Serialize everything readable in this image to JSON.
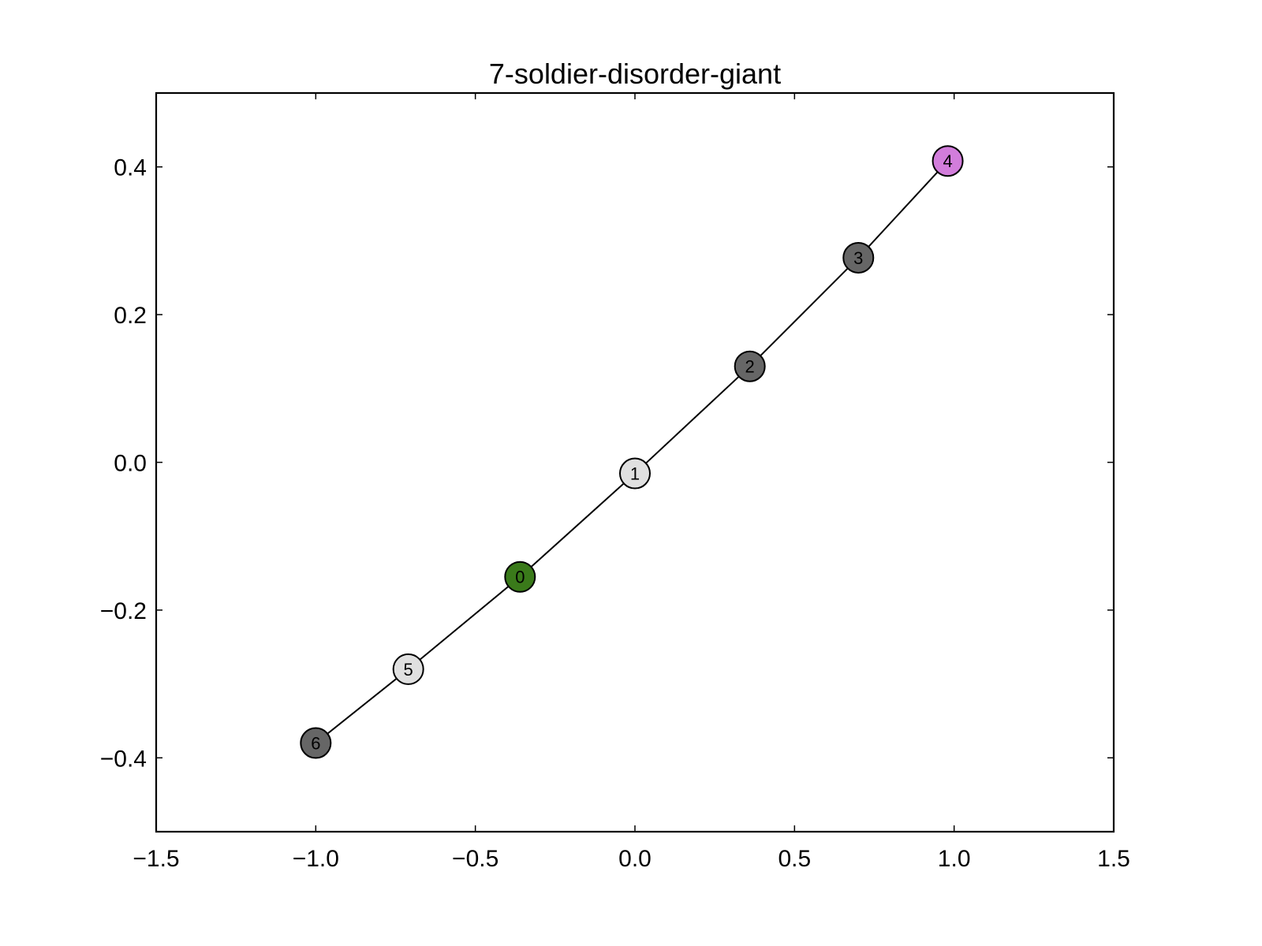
{
  "chart_data": {
    "type": "scatter",
    "title": "7-soldier-disorder-giant",
    "xlabel": "",
    "ylabel": "",
    "xlim": [
      -1.5,
      1.5
    ],
    "ylim": [
      -0.5,
      0.5
    ],
    "x_ticks": [
      "−1.5",
      "−1.0",
      "−0.5",
      "0.0",
      "0.5",
      "1.0",
      "1.5"
    ],
    "x_tick_values": [
      -1.5,
      -1.0,
      -0.5,
      0.0,
      0.5,
      1.0,
      1.5
    ],
    "y_ticks": [
      "−0.4",
      "−0.2",
      "0.0",
      "0.2",
      "0.4"
    ],
    "y_tick_values": [
      -0.4,
      -0.2,
      0.0,
      0.2,
      0.4
    ],
    "grid": false,
    "nodes": [
      {
        "label": "6",
        "x": -1.0,
        "y": -0.38,
        "color": "#666666"
      },
      {
        "label": "5",
        "x": -0.71,
        "y": -0.28,
        "color": "#e0e0e0"
      },
      {
        "label": "0",
        "x": -0.36,
        "y": -0.155,
        "color": "#3a7a1a"
      },
      {
        "label": "1",
        "x": 0.0,
        "y": -0.015,
        "color": "#e0e0e0"
      },
      {
        "label": "2",
        "x": 0.36,
        "y": 0.13,
        "color": "#666666"
      },
      {
        "label": "3",
        "x": 0.7,
        "y": 0.277,
        "color": "#666666"
      },
      {
        "label": "4",
        "x": 0.98,
        "y": 0.408,
        "color": "#d27ddb"
      }
    ],
    "edges": [
      [
        "6",
        "5"
      ],
      [
        "5",
        "0"
      ],
      [
        "0",
        "1"
      ],
      [
        "1",
        "2"
      ],
      [
        "2",
        "3"
      ],
      [
        "3",
        "4"
      ]
    ]
  }
}
